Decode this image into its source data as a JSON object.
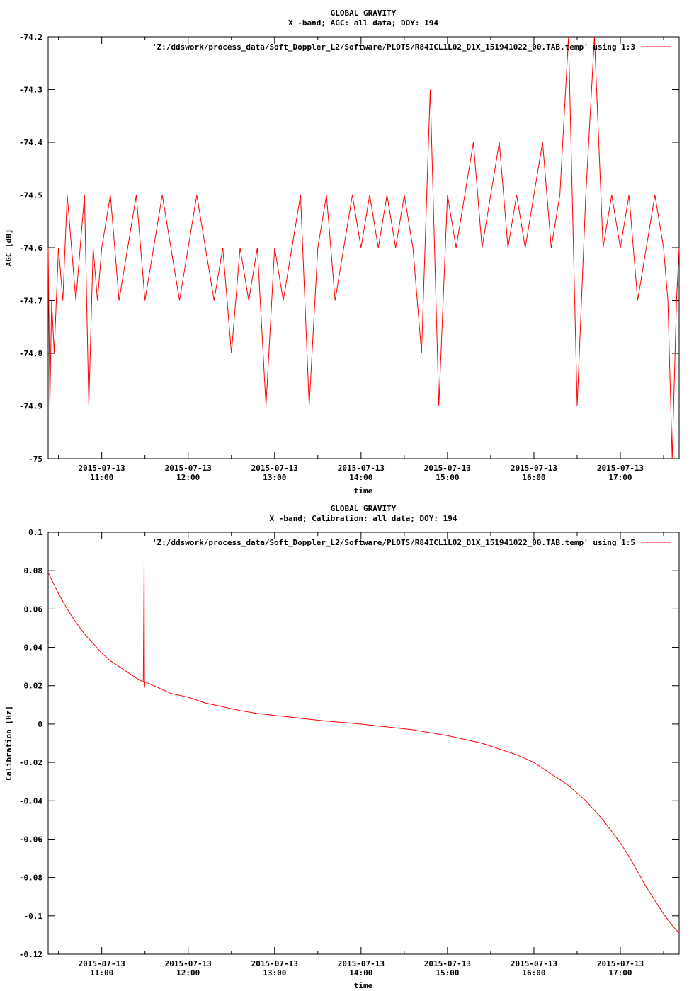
{
  "chart_data": [
    {
      "type": "line",
      "title": "GLOBAL GRAVITY",
      "subtitle": "X -band; AGC: all data; DOY: 194",
      "xlabel": "time",
      "ylabel": "AGC [dB]",
      "ylim": [
        -75,
        -74.2
      ],
      "yticks": [
        -74.2,
        -74.3,
        -74.4,
        -74.5,
        -74.6,
        -74.7,
        -74.8,
        -74.9,
        -75
      ],
      "ytick_labels": [
        "-74.2",
        "-74.3",
        "-74.4",
        "-74.5",
        "-74.6",
        "-74.7",
        "-74.8",
        "-74.9",
        "-75"
      ],
      "xlim": [
        10.38,
        17.68
      ],
      "xticks": [
        11,
        12,
        13,
        14,
        15,
        16,
        17
      ],
      "xtick_date": "2015-07-13",
      "xtick_labels": [
        "11:00",
        "12:00",
        "13:00",
        "14:00",
        "15:00",
        "16:00",
        "17:00"
      ],
      "color": "#ff0000",
      "legend_position": "top-right",
      "series": [
        {
          "name": "'Z:/ddswork/process_data/Soft_Doppler_L2/Software/PLOTS/R84ICL1L02_D1X_151941022_00.TAB.temp' using 1:3",
          "x": [
            10.38,
            10.4,
            10.42,
            10.45,
            10.5,
            10.55,
            10.6,
            10.65,
            10.7,
            10.75,
            10.8,
            10.85,
            10.9,
            10.95,
            11.0,
            11.1,
            11.2,
            11.3,
            11.4,
            11.5,
            11.6,
            11.7,
            11.8,
            11.9,
            12.0,
            12.1,
            12.2,
            12.3,
            12.4,
            12.5,
            12.6,
            12.7,
            12.8,
            12.9,
            13.0,
            13.1,
            13.2,
            13.3,
            13.4,
            13.5,
            13.6,
            13.7,
            13.8,
            13.9,
            14.0,
            14.1,
            14.2,
            14.3,
            14.4,
            14.5,
            14.6,
            14.7,
            14.8,
            14.9,
            15.0,
            15.1,
            15.2,
            15.3,
            15.4,
            15.5,
            15.6,
            15.7,
            15.8,
            15.9,
            16.0,
            16.1,
            16.2,
            16.3,
            16.4,
            16.5,
            16.6,
            16.7,
            16.8,
            16.9,
            17.0,
            17.1,
            17.2,
            17.3,
            17.4,
            17.5,
            17.55,
            17.6,
            17.65,
            17.68
          ],
          "y": [
            -74.6,
            -74.9,
            -74.7,
            -74.8,
            -74.6,
            -74.7,
            -74.5,
            -74.6,
            -74.7,
            -74.6,
            -74.5,
            -74.9,
            -74.6,
            -74.7,
            -74.6,
            -74.5,
            -74.7,
            -74.6,
            -74.5,
            -74.7,
            -74.6,
            -74.5,
            -74.6,
            -74.7,
            -74.6,
            -74.5,
            -74.6,
            -74.7,
            -74.6,
            -74.8,
            -74.6,
            -74.7,
            -74.6,
            -74.9,
            -74.6,
            -74.7,
            -74.6,
            -74.5,
            -74.9,
            -74.6,
            -74.5,
            -74.7,
            -74.6,
            -74.5,
            -74.6,
            -74.5,
            -74.6,
            -74.5,
            -74.6,
            -74.5,
            -74.6,
            -74.8,
            -74.3,
            -74.9,
            -74.5,
            -74.6,
            -74.5,
            -74.4,
            -74.6,
            -74.5,
            -74.4,
            -74.6,
            -74.5,
            -74.6,
            -74.5,
            -74.4,
            -74.6,
            -74.5,
            -74.2,
            -74.9,
            -74.5,
            -74.2,
            -74.6,
            -74.5,
            -74.6,
            -74.5,
            -74.7,
            -74.6,
            -74.5,
            -74.6,
            -74.7,
            -75.0,
            -74.7,
            -74.6
          ]
        }
      ]
    },
    {
      "type": "line",
      "title": "GLOBAL GRAVITY",
      "subtitle": "X -band; Calibration: all data; DOY: 194",
      "xlabel": "time",
      "ylabel": "Calibration [Hz]",
      "ylim": [
        -0.12,
        0.1
      ],
      "yticks": [
        0.1,
        0.08,
        0.06,
        0.04,
        0.02,
        0,
        -0.02,
        -0.04,
        -0.06,
        -0.08,
        -0.1,
        -0.12
      ],
      "ytick_labels": [
        "0.1",
        "0.08",
        "0.06",
        "0.04",
        "0.02",
        "0",
        "-0.02",
        "-0.04",
        "-0.06",
        "-0.08",
        "-0.1",
        "-0.12"
      ],
      "xlim": [
        10.38,
        17.68
      ],
      "xticks": [
        11,
        12,
        13,
        14,
        15,
        16,
        17
      ],
      "xtick_date": "2015-07-13",
      "xtick_labels": [
        "11:00",
        "12:00",
        "13:00",
        "14:00",
        "15:00",
        "16:00",
        "17:00"
      ],
      "color": "#ff0000",
      "legend_position": "top-right",
      "series": [
        {
          "name": "'Z:/ddswork/process_data/Soft_Doppler_L2/Software/PLOTS/R84ICL1L02_D1X_151941022_00.TAB.temp' using 1:5",
          "x": [
            10.38,
            10.5,
            10.6,
            10.7,
            10.8,
            10.9,
            11.0,
            11.1,
            11.2,
            11.3,
            11.4,
            11.48,
            11.49,
            11.495,
            11.5,
            11.6,
            11.7,
            11.8,
            11.9,
            12.0,
            12.2,
            12.4,
            12.6,
            12.8,
            13.0,
            13.2,
            13.4,
            13.6,
            13.8,
            14.0,
            14.2,
            14.4,
            14.6,
            14.8,
            15.0,
            15.2,
            15.4,
            15.6,
            15.8,
            16.0,
            16.2,
            16.4,
            16.6,
            16.8,
            17.0,
            17.1,
            17.2,
            17.3,
            17.4,
            17.5,
            17.6,
            17.68
          ],
          "y": [
            0.079,
            0.068,
            0.06,
            0.053,
            0.047,
            0.042,
            0.037,
            0.033,
            0.03,
            0.027,
            0.024,
            0.022,
            0.085,
            0.019,
            0.022,
            0.02,
            0.018,
            0.016,
            0.015,
            0.014,
            0.011,
            0.009,
            0.007,
            0.0055,
            0.0045,
            0.0035,
            0.0025,
            0.0015,
            0.0008,
            0.0,
            -0.001,
            -0.002,
            -0.003,
            -0.0045,
            -0.006,
            -0.008,
            -0.01,
            -0.013,
            -0.016,
            -0.02,
            -0.026,
            -0.032,
            -0.04,
            -0.05,
            -0.062,
            -0.069,
            -0.077,
            -0.085,
            -0.092,
            -0.099,
            -0.105,
            -0.109
          ]
        }
      ]
    }
  ]
}
